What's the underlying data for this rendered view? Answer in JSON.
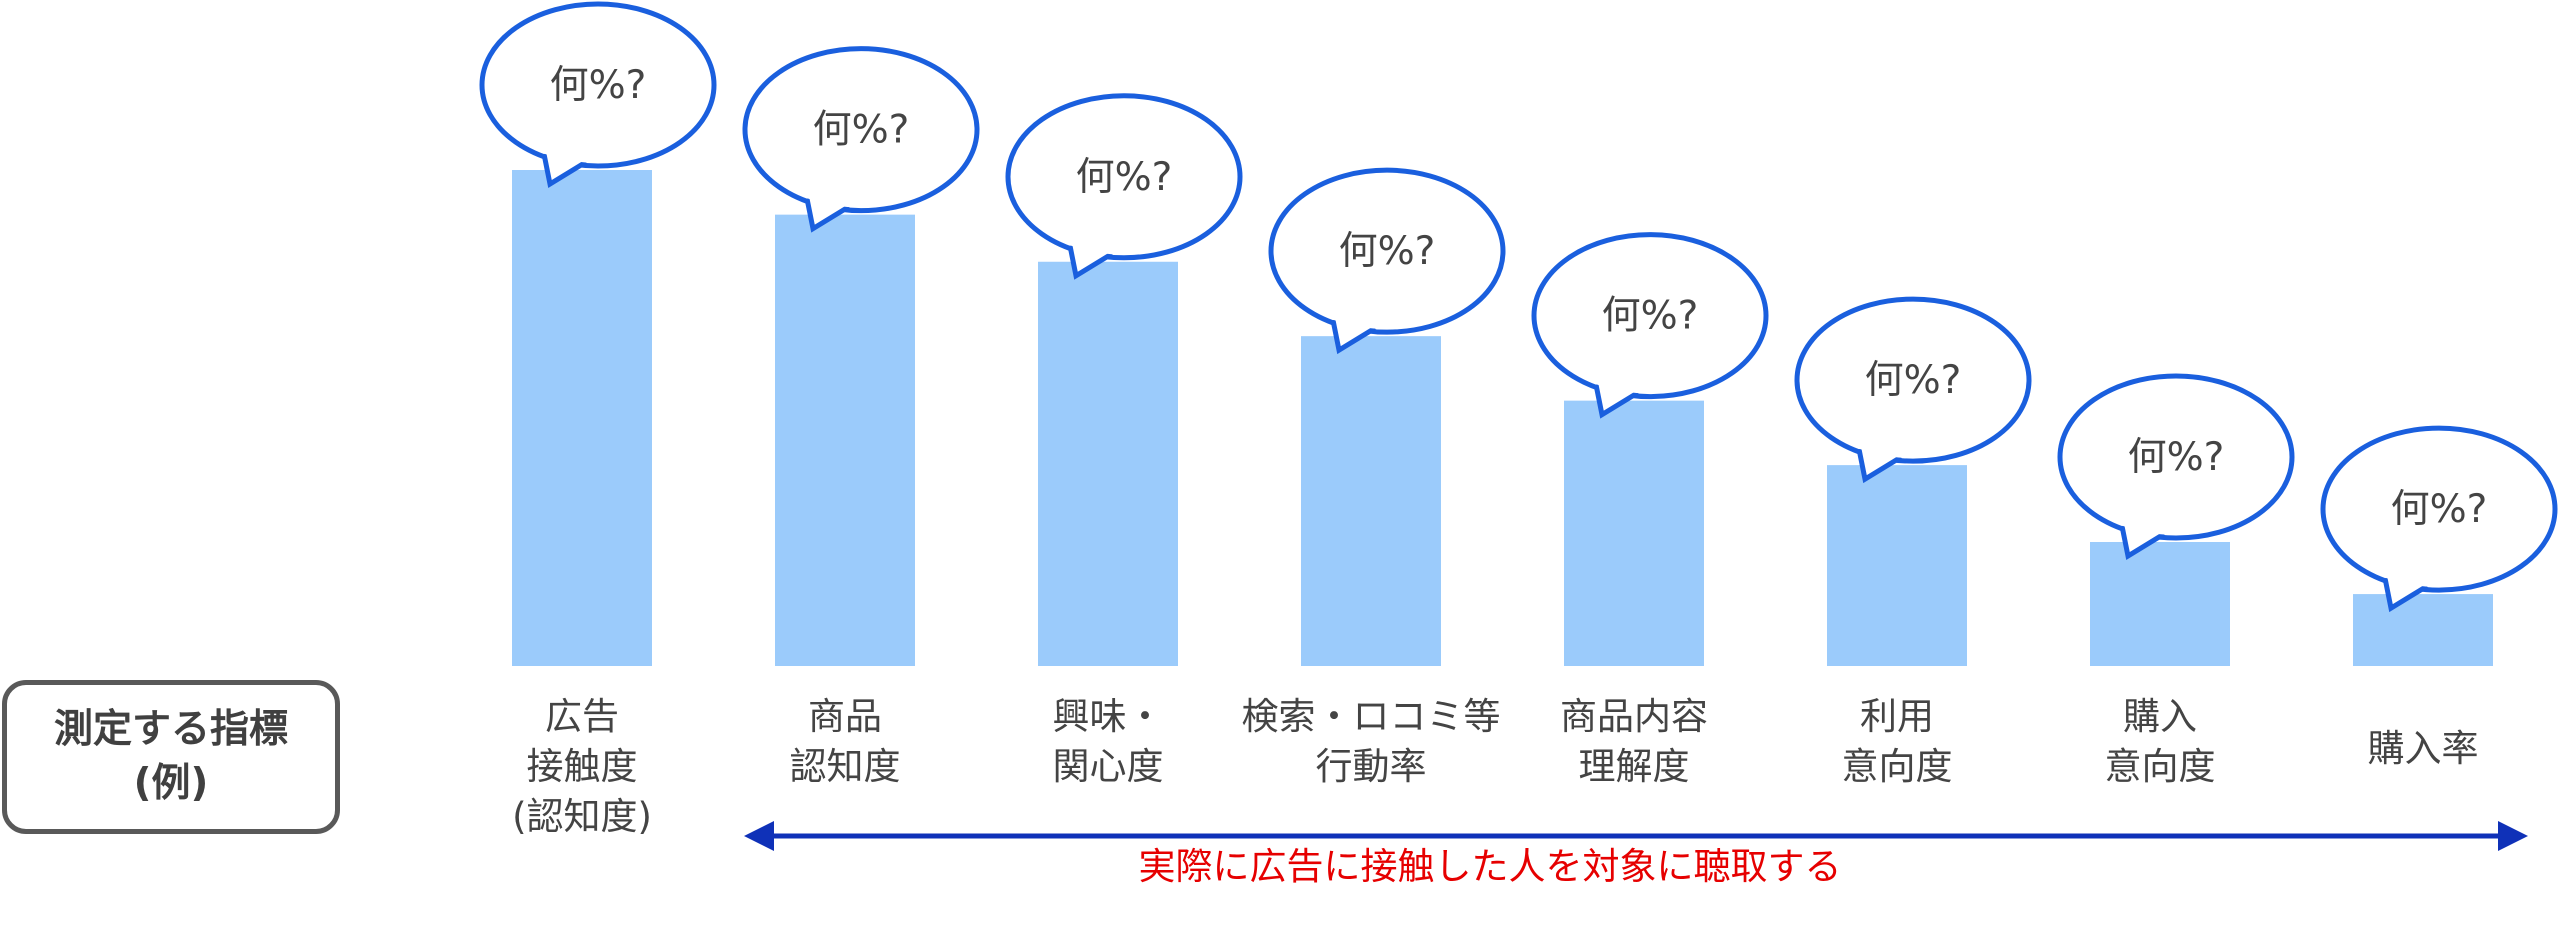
{
  "chart_data": {
    "type": "bar",
    "categories": [
      [
        "広告",
        "接触度",
        "(認知度)"
      ],
      [
        "商品",
        "認知度"
      ],
      [
        "興味・",
        "関心度"
      ],
      [
        "検索・ロコミ等",
        "行動率"
      ],
      [
        "商品内容",
        "理解度"
      ],
      [
        "利用",
        "意向度"
      ],
      [
        "購入",
        "意向度"
      ],
      [
        "購入率"
      ]
    ],
    "values": [
      100,
      91,
      81.5,
      66.5,
      53.5,
      40.5,
      25,
      14.5
    ],
    "bubble_text": "何%?",
    "ylim": [
      0,
      100
    ],
    "bar_color": "#9bcbfb",
    "bubble_stroke": "#1a5fde"
  },
  "metric_label": [
    "測定する指標",
    "(例)"
  ],
  "note": "実際に広告に接触した人を対象に聴取する",
  "colors": {
    "arrow": "#0f31b8",
    "note": "#e60000"
  }
}
